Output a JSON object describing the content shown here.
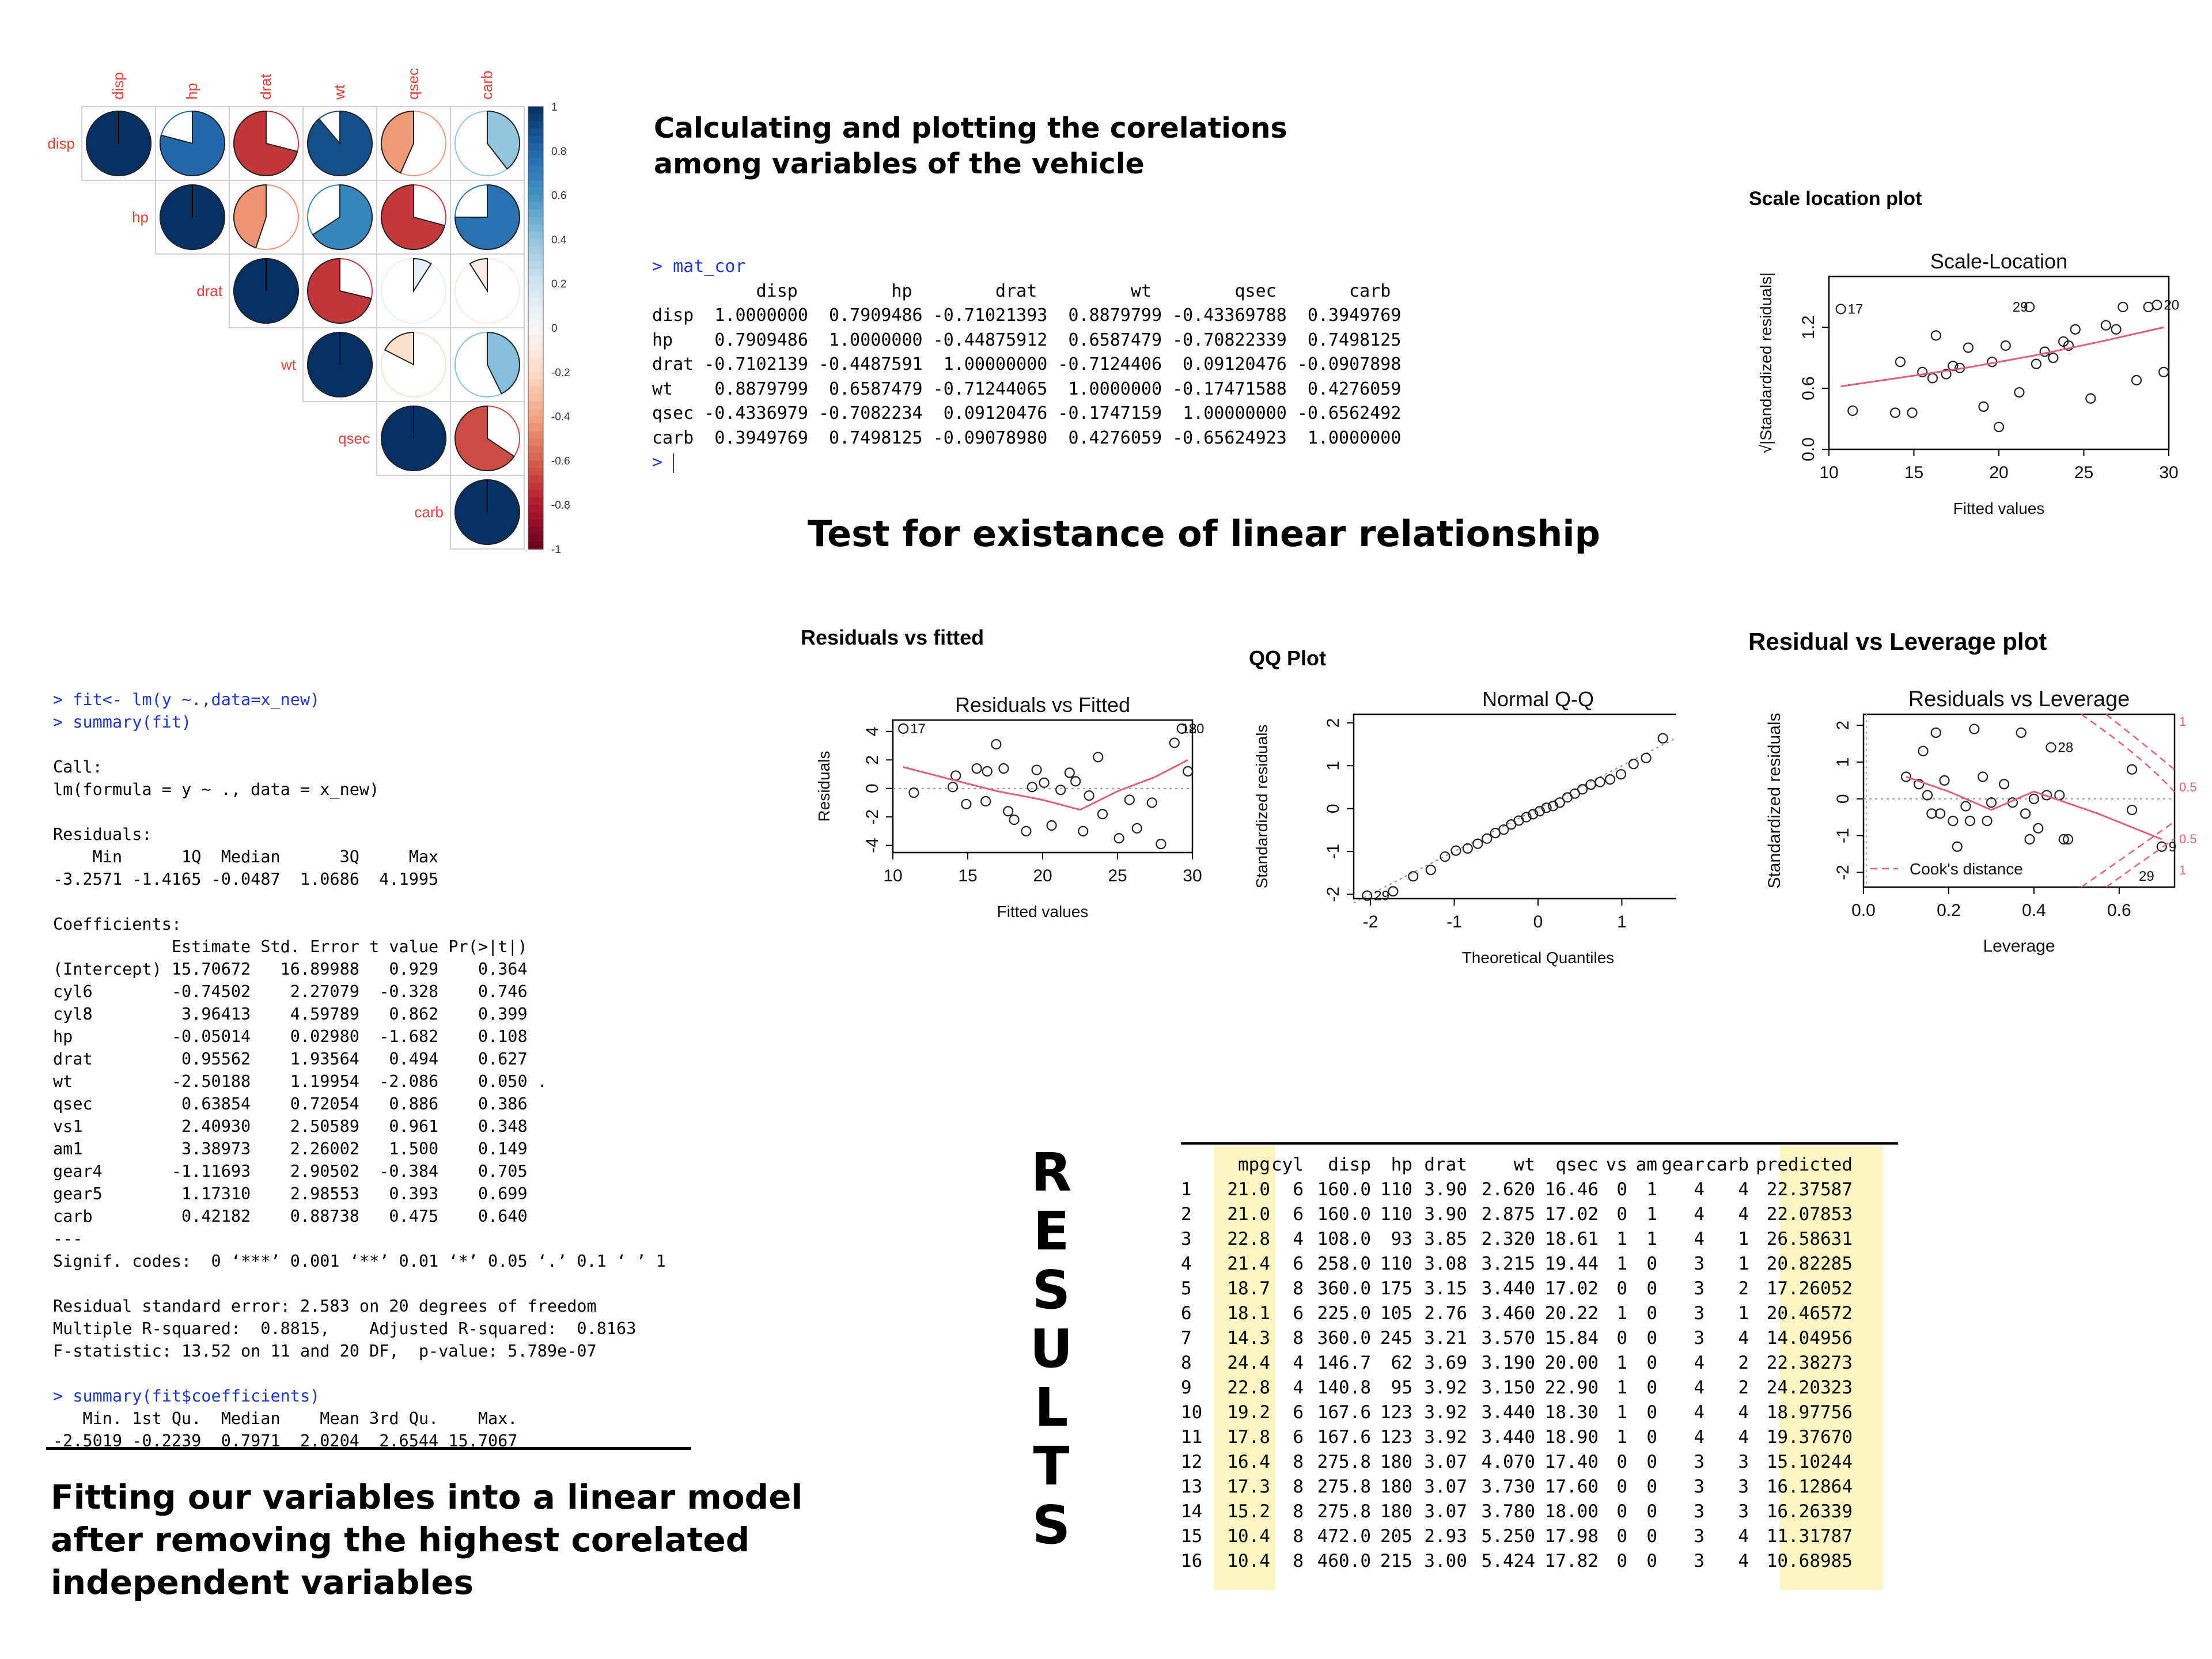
{
  "titles": {
    "corr_title": "Calculating and plotting the corelations among variables of the vehicle",
    "linear_title": "Test for existance of linear relationship",
    "model_title": "Fitting our variables into a linear model after removing the highest corelated independent variables",
    "results_word": "RESULTS"
  },
  "corrplot": {
    "variables": [
      "disp",
      "hp",
      "drat",
      "wt",
      "qsec",
      "carb"
    ],
    "matrix": [
      [
        1.0,
        0.7909486,
        -0.7102139,
        0.8879799,
        -0.4336979,
        0.3949769
      ],
      [
        0.7909486,
        1.0,
        -0.4487591,
        0.6587479,
        -0.7082234,
        0.7498125
      ],
      [
        -0.7102139,
        -0.4487591,
        1.0,
        -0.7124406,
        0.09120476,
        -0.0907898
      ],
      [
        0.8879799,
        0.6587479,
        -0.7124406,
        1.0,
        -0.1747159,
        0.4276059
      ],
      [
        -0.4336979,
        -0.7082234,
        0.09120476,
        -0.1747159,
        1.0,
        -0.6562492
      ],
      [
        0.3949769,
        0.7498125,
        -0.0907898,
        0.4276059,
        -0.65624923,
        1.0
      ]
    ],
    "colorbar_ticks": [
      "1",
      "0.8",
      "0.6",
      "0.4",
      "0.2",
      "0",
      "-0.2",
      "-0.4",
      "-0.6",
      "-0.8",
      "-1"
    ],
    "colors": {
      "positive": "#053061",
      "negative": "#67001f",
      "label": "#e0413b"
    }
  },
  "matcor": {
    "prompt_cmd": "> mat_cor",
    "header": "          disp         hp        drat         wt        qsec       carb",
    "rows": [
      "disp  1.0000000  0.7909486 -0.71021393  0.8879799 -0.43369788  0.3949769",
      "hp    0.7909486  1.0000000 -0.44875912  0.6587479 -0.70822339  0.7498125",
      "drat -0.7102139 -0.4487591  1.00000000 -0.7124406  0.09120476 -0.0907898",
      "wt    0.8879799  0.6587479 -0.71244065  1.0000000 -0.17471588  0.4276059",
      "qsec -0.4336979 -0.7082234  0.09120476 -0.1747159  1.00000000 -0.6562492",
      "carb  0.3949769  0.7498125 -0.09078980  0.4276059 -0.65624923  1.0000000"
    ],
    "prompt_end": "> "
  },
  "model_console": {
    "lines_cmd1": "> fit<- lm(y ~.,data=x_new)",
    "lines_cmd2": "> summary(fit)",
    "body": "\nCall:\nlm(formula = y ~ ., data = x_new)\n\nResiduals:\n    Min      1Q  Median      3Q     Max \n-3.2571 -1.4165 -0.0487  1.0686  4.1995 \n\nCoefficients:\n            Estimate Std. Error t value Pr(>|t|)\n(Intercept) 15.70672   16.89988   0.929    0.364\ncyl6        -0.74502    2.27079  -0.328    0.746\ncyl8         3.96413    4.59789   0.862    0.399\nhp          -0.05014    0.02980  -1.682    0.108\ndrat         0.95562    1.93564   0.494    0.627\nwt          -2.50188    1.19954  -2.086    0.050 .\nqsec         0.63854    0.72054   0.886    0.386\nvs1          2.40930    2.50589   0.961    0.348\nam1          3.38973    2.26002   1.500    0.149\ngear4       -1.11693    2.90502  -0.384    0.705\ngear5        1.17310    2.98553   0.393    0.699\ncarb         0.42182    0.88738   0.475    0.640\n---\nSignif. codes:  0 ‘***’ 0.001 ‘**’ 0.01 ‘*’ 0.05 ‘.’ 0.1 ‘ ’ 1\n\nResidual standard error: 2.583 on 20 degrees of freedom\nMultiple R-squared:  0.8815,    Adjusted R-squared:  0.8163 \nF-statistic: 13.52 on 11 and 20 DF,  p-value: 5.789e-07\n",
    "cmd3": "> summary(fit$coefficients)",
    "body2": "   Min. 1st Qu.  Median    Mean 3rd Qu.    Max. \n-2.5019 -0.2239  0.7971  2.0204  2.6544 15.7067 "
  },
  "plots": {
    "scale_location": {
      "section": "Scale location plot",
      "title": "Scale-Location",
      "xlabel": "Fitted values",
      "ylabel": "√|Standardized residuals|",
      "xticks": [
        "10",
        "15",
        "20",
        "25",
        "30"
      ],
      "yticks": [
        "0.0",
        "0.6",
        "1.2"
      ]
    },
    "residuals_fitted": {
      "section": "Residuals vs fitted",
      "title": "Residuals vs Fitted",
      "xlabel": "Fitted values",
      "ylabel": "Residuals",
      "xticks": [
        "10",
        "15",
        "20",
        "25",
        "30"
      ],
      "yticks": [
        "-4",
        "-2",
        "0",
        "2",
        "4"
      ]
    },
    "qq": {
      "section": "QQ Plot",
      "title": "Normal Q-Q",
      "xlabel": "Theoretical Quantiles",
      "ylabel": "Standardized residuals",
      "xticks": [
        "-2",
        "-1",
        "0",
        "1",
        "2"
      ],
      "yticks": [
        "-2",
        "-1",
        "0",
        "1",
        "2"
      ]
    },
    "leverage": {
      "section": "Residual vs Leverage plot",
      "title": "Residuals vs Leverage",
      "xlabel": "Leverage",
      "ylabel": "Standardized residuals",
      "xticks": [
        "0.0",
        "0.2",
        "0.4",
        "0.6"
      ],
      "yticks": [
        "-2",
        "-1",
        "0",
        "1",
        "2"
      ],
      "cook_label": "Cook's distance",
      "cook_values": [
        "1",
        "0.5",
        "0.5",
        "1"
      ]
    }
  },
  "chart_data": [
    {
      "type": "scatter",
      "title": "Scale-Location",
      "xlabel": "Fitted values",
      "ylabel": "√|Standardized residuals|",
      "xlim": [
        10,
        30
      ],
      "ylim": [
        0,
        1.7
      ],
      "x": [
        10.7,
        11.4,
        13.9,
        14.2,
        14.9,
        15.5,
        16.1,
        16.3,
        16.9,
        17.3,
        17.7,
        18.2,
        19.1,
        19.6,
        20.0,
        20.4,
        21.2,
        21.8,
        22.2,
        22.7,
        23.2,
        23.8,
        24.1,
        24.5,
        25.4,
        26.3,
        26.9,
        27.3,
        28.1,
        28.8,
        29.3,
        29.7
      ],
      "y": [
        1.38,
        0.38,
        0.36,
        0.86,
        0.36,
        0.76,
        0.7,
        1.12,
        0.74,
        0.82,
        0.8,
        1.0,
        0.42,
        0.86,
        0.22,
        1.02,
        0.56,
        1.4,
        0.84,
        0.96,
        0.9,
        1.06,
        1.02,
        1.18,
        0.5,
        1.22,
        1.18,
        1.4,
        0.68,
        1.4,
        1.42,
        0.76
      ],
      "labels": {
        "17": [
          10.7,
          1.38
        ],
        "29": [
          20.4,
          1.4
        ],
        "20": [
          29.3,
          1.42
        ]
      }
    },
    {
      "type": "scatter",
      "title": "Residuals vs Fitted",
      "xlabel": "Fitted values",
      "ylabel": "Residuals",
      "xlim": [
        10,
        30
      ],
      "ylim": [
        -4.5,
        4.8
      ],
      "x": [
        10.7,
        11.4,
        14.0,
        14.2,
        14.9,
        15.6,
        16.2,
        16.3,
        16.9,
        17.4,
        17.7,
        18.1,
        18.9,
        19.3,
        19.6,
        20.1,
        20.6,
        21.2,
        21.8,
        22.2,
        22.7,
        23.1,
        23.7,
        24.0,
        25.1,
        25.8,
        26.3,
        27.3,
        27.9,
        28.8,
        29.3,
        29.7
      ],
      "y": [
        4.2,
        -0.3,
        0.1,
        0.9,
        -1.1,
        1.4,
        -0.9,
        1.2,
        3.1,
        1.4,
        -1.6,
        -2.2,
        -3.0,
        0.1,
        1.3,
        0.4,
        -2.6,
        -0.1,
        1.1,
        0.5,
        -3.0,
        -0.5,
        2.2,
        -1.8,
        -3.5,
        -0.8,
        -2.8,
        -1.0,
        -3.9,
        3.2,
        4.2,
        1.2
      ],
      "labels": {
        "17": [
          10.7,
          4.2
        ],
        "18": [
          28.8,
          4.2
        ],
        "20": [
          29.3,
          4.2
        ]
      }
    },
    {
      "type": "scatter",
      "title": "Normal Q-Q",
      "xlabel": "Theoretical Quantiles",
      "ylabel": "Standardized residuals",
      "xlim": [
        -2.2,
        2.2
      ],
      "ylim": [
        -2.1,
        2.2
      ],
      "x": [
        -2.04,
        -1.73,
        -1.49,
        -1.28,
        -1.11,
        -0.98,
        -0.84,
        -0.72,
        -0.61,
        -0.51,
        -0.41,
        -0.32,
        -0.23,
        -0.14,
        -0.06,
        0.02,
        0.1,
        0.18,
        0.26,
        0.35,
        0.44,
        0.53,
        0.63,
        0.74,
        0.86,
        0.99,
        1.14,
        1.29,
        1.49,
        1.73,
        2.04
      ],
      "y": [
        -2.03,
        -1.93,
        -1.58,
        -1.43,
        -1.12,
        -0.98,
        -0.93,
        -0.82,
        -0.7,
        -0.57,
        -0.49,
        -0.37,
        -0.28,
        -0.2,
        -0.13,
        -0.06,
        0.02,
        0.06,
        0.14,
        0.26,
        0.35,
        0.45,
        0.56,
        0.62,
        0.68,
        0.8,
        1.04,
        1.18,
        1.64,
        1.73,
        1.84
      ],
      "labels": {
        "29": [
          -2.04,
          -2.03
        ],
        "17": [
          1.73,
          1.73
        ],
        "20": [
          2.04,
          1.84
        ]
      }
    },
    {
      "type": "scatter",
      "title": "Residuals vs Leverage",
      "xlabel": "Leverage",
      "ylabel": "Standardized residuals",
      "xlim": [
        0.0,
        0.73
      ],
      "ylim": [
        -2.4,
        2.3
      ],
      "x": [
        0.1,
        0.13,
        0.14,
        0.15,
        0.16,
        0.17,
        0.18,
        0.19,
        0.21,
        0.22,
        0.24,
        0.25,
        0.26,
        0.28,
        0.29,
        0.3,
        0.33,
        0.35,
        0.37,
        0.38,
        0.39,
        0.4,
        0.41,
        0.43,
        0.44,
        0.46,
        0.47,
        0.48,
        0.63,
        0.63,
        0.7
      ],
      "y": [
        0.6,
        0.4,
        1.3,
        0.1,
        -0.4,
        1.8,
        -0.4,
        0.5,
        -0.6,
        -1.3,
        -0.2,
        -0.6,
        1.9,
        0.6,
        -0.6,
        -0.1,
        0.4,
        -0.1,
        1.8,
        -0.4,
        -1.1,
        0.0,
        -0.8,
        0.1,
        1.4,
        0.1,
        -1.1,
        -1.1,
        0.8,
        -0.3,
        -1.3
      ],
      "labels": {
        "28": [
          0.44,
          1.4
        ],
        "29": [
          0.63,
          -2.1
        ],
        "9": [
          0.7,
          -1.3
        ]
      }
    }
  ],
  "results": {
    "headers": [
      "",
      "mpg",
      "cyl",
      "disp",
      "hp",
      "drat",
      "wt",
      "qsec",
      "vs",
      "am",
      "gear",
      "carb",
      "predicted"
    ],
    "rows": [
      [
        "1",
        "21.0",
        "6",
        "160.0",
        "110",
        "3.90",
        "2.620",
        "16.46",
        "0",
        "1",
        "4",
        "4",
        "22.37587"
      ],
      [
        "2",
        "21.0",
        "6",
        "160.0",
        "110",
        "3.90",
        "2.875",
        "17.02",
        "0",
        "1",
        "4",
        "4",
        "22.07853"
      ],
      [
        "3",
        "22.8",
        "4",
        "108.0",
        "93",
        "3.85",
        "2.320",
        "18.61",
        "1",
        "1",
        "4",
        "1",
        "26.58631"
      ],
      [
        "4",
        "21.4",
        "6",
        "258.0",
        "110",
        "3.08",
        "3.215",
        "19.44",
        "1",
        "0",
        "3",
        "1",
        "20.82285"
      ],
      [
        "5",
        "18.7",
        "8",
        "360.0",
        "175",
        "3.15",
        "3.440",
        "17.02",
        "0",
        "0",
        "3",
        "2",
        "17.26052"
      ],
      [
        "6",
        "18.1",
        "6",
        "225.0",
        "105",
        "2.76",
        "3.460",
        "20.22",
        "1",
        "0",
        "3",
        "1",
        "20.46572"
      ],
      [
        "7",
        "14.3",
        "8",
        "360.0",
        "245",
        "3.21",
        "3.570",
        "15.84",
        "0",
        "0",
        "3",
        "4",
        "14.04956"
      ],
      [
        "8",
        "24.4",
        "4",
        "146.7",
        "62",
        "3.69",
        "3.190",
        "20.00",
        "1",
        "0",
        "4",
        "2",
        "22.38273"
      ],
      [
        "9",
        "22.8",
        "4",
        "140.8",
        "95",
        "3.92",
        "3.150",
        "22.90",
        "1",
        "0",
        "4",
        "2",
        "24.20323"
      ],
      [
        "10",
        "19.2",
        "6",
        "167.6",
        "123",
        "3.92",
        "3.440",
        "18.30",
        "1",
        "0",
        "4",
        "4",
        "18.97756"
      ],
      [
        "11",
        "17.8",
        "6",
        "167.6",
        "123",
        "3.92",
        "3.440",
        "18.90",
        "1",
        "0",
        "4",
        "4",
        "19.37670"
      ],
      [
        "12",
        "16.4",
        "8",
        "275.8",
        "180",
        "3.07",
        "4.070",
        "17.40",
        "0",
        "0",
        "3",
        "3",
        "15.10244"
      ],
      [
        "13",
        "17.3",
        "8",
        "275.8",
        "180",
        "3.07",
        "3.730",
        "17.60",
        "0",
        "0",
        "3",
        "3",
        "16.12864"
      ],
      [
        "14",
        "15.2",
        "8",
        "275.8",
        "180",
        "3.07",
        "3.780",
        "18.00",
        "0",
        "0",
        "3",
        "3",
        "16.26339"
      ],
      [
        "15",
        "10.4",
        "8",
        "472.0",
        "205",
        "2.93",
        "5.250",
        "17.98",
        "0",
        "0",
        "3",
        "4",
        "11.31787"
      ],
      [
        "16",
        "10.4",
        "8",
        "460.0",
        "215",
        "3.00",
        "5.424",
        "17.82",
        "0",
        "0",
        "3",
        "4",
        "10.68985"
      ]
    ],
    "highlight_color": "#fdf6c3"
  }
}
